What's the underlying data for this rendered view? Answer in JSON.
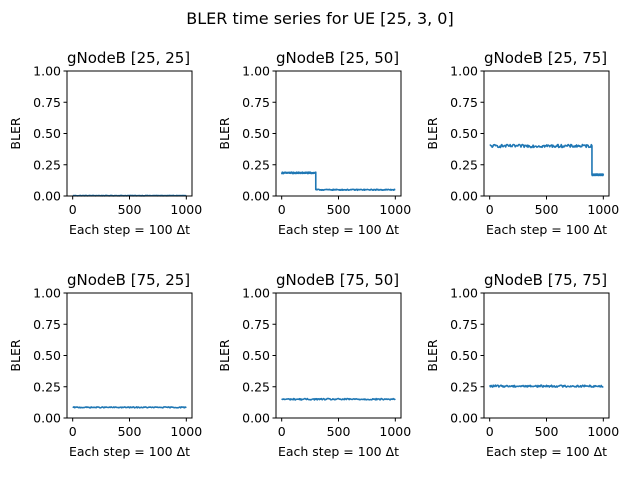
{
  "figure": {
    "suptitle": "BLER time series for UE [25, 3, 0]",
    "line_color": "#1f77b4"
  },
  "chart_data": [
    {
      "type": "line",
      "title": "gNodeB [25, 25]",
      "xlabel": "Each step = 100 Δt",
      "ylabel": "BLER",
      "xlim": [
        -50,
        1050
      ],
      "ylim": [
        0,
        1
      ],
      "xticks": [
        0,
        500,
        1000
      ],
      "yticks": [
        0.0,
        0.25,
        0.5,
        0.75,
        1.0
      ],
      "ytick_labels": [
        "0.00",
        "0.25",
        "0.50",
        "0.75",
        "1.00"
      ],
      "grid": false,
      "series": [
        {
          "segments": [
            {
              "x_start": 0,
              "x_end": 1000,
              "mean": 0.003,
              "noise": 0.002
            }
          ]
        }
      ]
    },
    {
      "type": "line",
      "title": "gNodeB [25, 50]",
      "xlabel": "Each step = 100 Δt",
      "ylabel": "BLER",
      "xlim": [
        -50,
        1050
      ],
      "ylim": [
        0,
        1
      ],
      "xticks": [
        0,
        500,
        1000
      ],
      "yticks": [
        0.0,
        0.25,
        0.5,
        0.75,
        1.0
      ],
      "ytick_labels": [
        "0.00",
        "0.25",
        "0.50",
        "0.75",
        "1.00"
      ],
      "grid": false,
      "series": [
        {
          "segments": [
            {
              "x_start": 0,
              "x_end": 300,
              "mean": 0.185,
              "noise": 0.006
            },
            {
              "x_start": 300,
              "x_end": 1000,
              "mean": 0.05,
              "noise": 0.004
            }
          ]
        }
      ]
    },
    {
      "type": "line",
      "title": "gNodeB [25, 75]",
      "xlabel": "Each step = 100 Δt",
      "ylabel": "BLER",
      "xlim": [
        -50,
        1050
      ],
      "ylim": [
        0,
        1
      ],
      "xticks": [
        0,
        500,
        1000
      ],
      "yticks": [
        0.0,
        0.25,
        0.5,
        0.75,
        1.0
      ],
      "ytick_labels": [
        "0.00",
        "0.25",
        "0.50",
        "0.75",
        "1.00"
      ],
      "grid": false,
      "series": [
        {
          "segments": [
            {
              "x_start": 0,
              "x_end": 900,
              "mean": 0.4,
              "noise": 0.012
            },
            {
              "x_start": 900,
              "x_end": 1000,
              "mean": 0.17,
              "noise": 0.006
            }
          ]
        }
      ]
    },
    {
      "type": "line",
      "title": "gNodeB [75, 25]",
      "xlabel": "Each step = 100 Δt",
      "ylabel": "BLER",
      "xlim": [
        -50,
        1050
      ],
      "ylim": [
        0,
        1
      ],
      "xticks": [
        0,
        500,
        1000
      ],
      "yticks": [
        0.0,
        0.25,
        0.5,
        0.75,
        1.0
      ],
      "ytick_labels": [
        "0.00",
        "0.25",
        "0.50",
        "0.75",
        "1.00"
      ],
      "grid": false,
      "series": [
        {
          "segments": [
            {
              "x_start": 0,
              "x_end": 1000,
              "mean": 0.085,
              "noise": 0.004
            }
          ]
        }
      ]
    },
    {
      "type": "line",
      "title": "gNodeB [75, 50]",
      "xlabel": "Each step = 100 Δt",
      "ylabel": "BLER",
      "xlim": [
        -50,
        1050
      ],
      "ylim": [
        0,
        1
      ],
      "xticks": [
        0,
        500,
        1000
      ],
      "yticks": [
        0.0,
        0.25,
        0.5,
        0.75,
        1.0
      ],
      "ytick_labels": [
        "0.00",
        "0.25",
        "0.50",
        "0.75",
        "1.00"
      ],
      "grid": false,
      "series": [
        {
          "segments": [
            {
              "x_start": 0,
              "x_end": 1000,
              "mean": 0.15,
              "noise": 0.006
            }
          ]
        }
      ]
    },
    {
      "type": "line",
      "title": "gNodeB [75, 75]",
      "xlabel": "Each step = 100 Δt",
      "ylabel": "BLER",
      "xlim": [
        -50,
        1050
      ],
      "ylim": [
        0,
        1
      ],
      "xticks": [
        0,
        500,
        1000
      ],
      "yticks": [
        0.0,
        0.25,
        0.5,
        0.75,
        1.0
      ],
      "ytick_labels": [
        "0.00",
        "0.25",
        "0.50",
        "0.75",
        "1.00"
      ],
      "grid": false,
      "series": [
        {
          "segments": [
            {
              "x_start": 0,
              "x_end": 1000,
              "mean": 0.255,
              "noise": 0.008
            }
          ]
        }
      ]
    }
  ]
}
